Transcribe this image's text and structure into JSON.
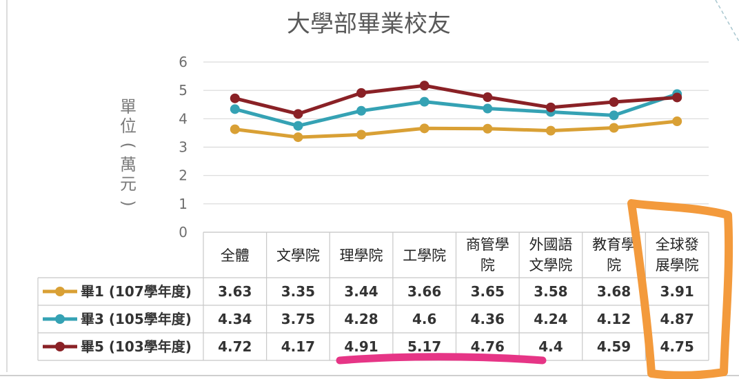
{
  "chart_data": {
    "type": "line",
    "title": "大學部畢業校友",
    "ylabel": "單位(萬元)",
    "ylim": [
      0,
      6
    ],
    "yticks": [
      0,
      1,
      2,
      3,
      4,
      5,
      6
    ],
    "grid": true,
    "categories": [
      [
        "全體"
      ],
      [
        "文學院"
      ],
      [
        "理學院"
      ],
      [
        "工學院"
      ],
      [
        "商管學",
        "院"
      ],
      [
        "外國語",
        "文學院"
      ],
      [
        "教育學",
        "院"
      ],
      [
        "全球發",
        "展學院"
      ]
    ],
    "series": [
      {
        "name": "畢1 (107學年度)",
        "color": "#d9a035",
        "values": [
          3.63,
          3.35,
          3.44,
          3.66,
          3.65,
          3.58,
          3.68,
          3.91
        ]
      },
      {
        "name": "畢3 (105學年度)",
        "color": "#35a2b4",
        "values": [
          4.34,
          3.75,
          4.28,
          4.6,
          4.36,
          4.24,
          4.12,
          4.87
        ]
      },
      {
        "name": "畢5 (103學年度)",
        "color": "#8a2126",
        "values": [
          4.72,
          4.17,
          4.91,
          5.17,
          4.76,
          4.4,
          4.59,
          4.75
        ]
      }
    ],
    "table_values": [
      [
        "3.63",
        "3.35",
        "3.44",
        "3.66",
        "3.65",
        "3.58",
        "3.68",
        "3.91"
      ],
      [
        "4.34",
        "3.75",
        "4.28",
        "4.6",
        "4.36",
        "4.24",
        "4.12",
        "4.87"
      ],
      [
        "4.72",
        "4.17",
        "4.91",
        "5.17",
        "4.76",
        "4.4",
        "4.59",
        "4.75"
      ]
    ]
  },
  "annotations": {
    "highlight_box_color": "#f39a3c",
    "underline_color": "#e63586"
  }
}
